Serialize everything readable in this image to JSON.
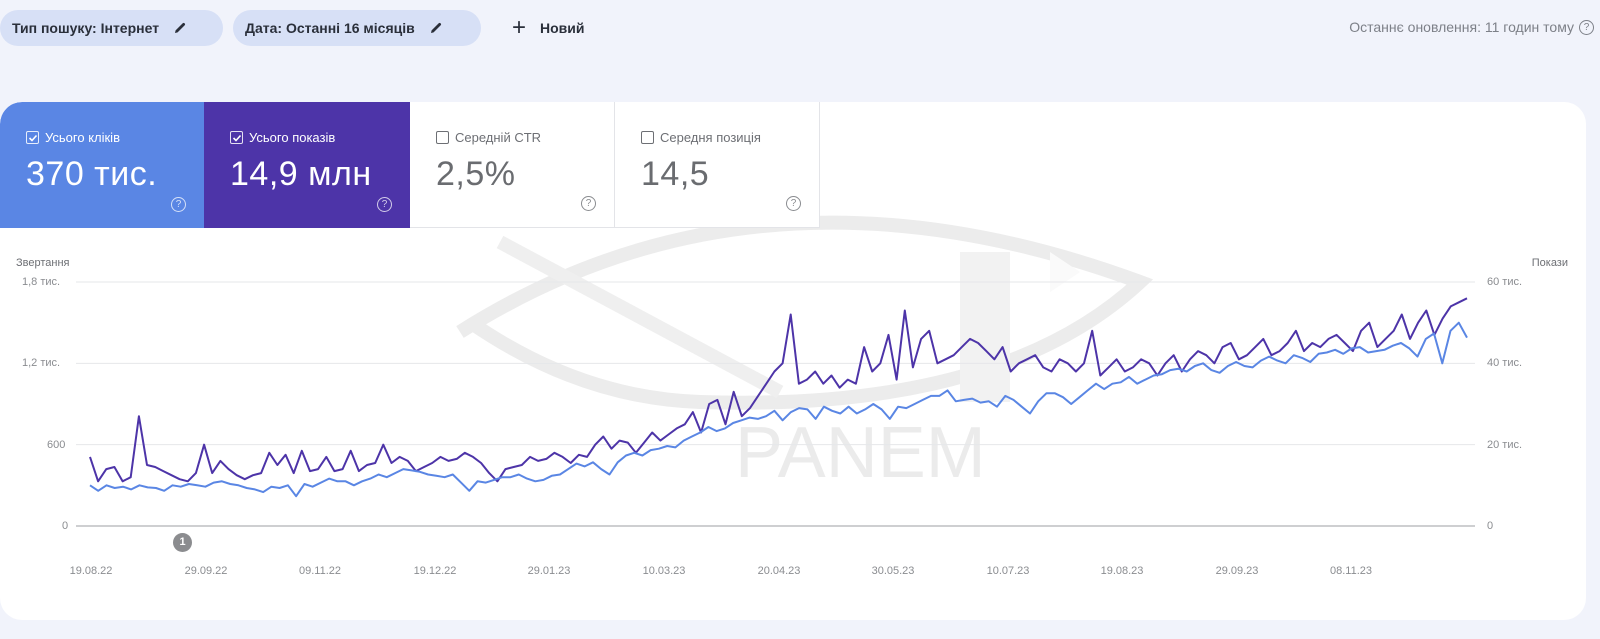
{
  "filters": {
    "search_type": "Тип пошуку: Інтернет",
    "date": "Дата: Останні 16 місяців",
    "new_label": "Новий"
  },
  "last_update": "Останнє оновлення: 11 годин тому",
  "metrics": [
    {
      "key": "clicks",
      "label": "Усього кліків",
      "value": "370 тис.",
      "checked": true,
      "color": "#5a86e4"
    },
    {
      "key": "impressions",
      "label": "Усього показів",
      "value": "14,9 млн",
      "checked": true,
      "color": "#4d34a8"
    },
    {
      "key": "ctr",
      "label": "Середній CTR",
      "value": "2,5%",
      "checked": false
    },
    {
      "key": "position",
      "label": "Середня позиція",
      "value": "14,5",
      "checked": false
    }
  ],
  "watermark": "PANEM",
  "annotation": {
    "label": "1",
    "date": "29.09.22"
  },
  "chart_data": {
    "type": "line",
    "title": "",
    "xlabel": "",
    "ylabel_left": "Звертання",
    "ylabel_right": "Покази",
    "left_ticks": [
      "0",
      "600",
      "1,2 тис.",
      "1,8 тис."
    ],
    "right_ticks": [
      "0",
      "20 тис.",
      "40 тис.",
      "60 тис."
    ],
    "ylim_left": [
      0,
      1800
    ],
    "ylim_right": [
      0,
      60000
    ],
    "x_tick_labels": [
      "19.08.22",
      "29.09.22",
      "09.11.22",
      "19.12.22",
      "29.01.23",
      "10.03.23",
      "20.04.23",
      "30.05.23",
      "10.07.23",
      "19.08.23",
      "29.09.23",
      "08.11.23"
    ],
    "grid": true,
    "legend": "metric cards above chart",
    "x_step_days": 3,
    "series": [
      {
        "name": "Усього кліків",
        "axis": "left",
        "color": "#5a86e4",
        "values": [
          300,
          260,
          300,
          280,
          290,
          270,
          300,
          285,
          280,
          260,
          300,
          290,
          310,
          300,
          290,
          320,
          330,
          310,
          300,
          280,
          270,
          250,
          290,
          280,
          300,
          220,
          310,
          290,
          320,
          350,
          330,
          330,
          300,
          330,
          350,
          380,
          360,
          390,
          420,
          410,
          400,
          380,
          370,
          360,
          380,
          320,
          260,
          330,
          320,
          340,
          360,
          360,
          380,
          350,
          330,
          340,
          370,
          380,
          420,
          460,
          440,
          470,
          420,
          380,
          470,
          520,
          540,
          520,
          560,
          570,
          590,
          580,
          630,
          660,
          690,
          730,
          700,
          720,
          760,
          780,
          800,
          790,
          810,
          850,
          780,
          840,
          870,
          860,
          790,
          880,
          850,
          830,
          880,
          830,
          860,
          900,
          860,
          790,
          880,
          870,
          900,
          930,
          960,
          960,
          1000,
          920,
          930,
          940,
          910,
          920,
          880,
          960,
          930,
          880,
          830,
          920,
          980,
          980,
          950,
          900,
          950,
          1000,
          1050,
          1010,
          1050,
          1060,
          1100,
          1050,
          1080,
          1110,
          1120,
          1150,
          1160,
          1140,
          1180,
          1200,
          1150,
          1130,
          1180,
          1210,
          1180,
          1170,
          1220,
          1250,
          1220,
          1200,
          1260,
          1240,
          1210,
          1270,
          1280,
          1300,
          1270,
          1310,
          1320,
          1280,
          1290,
          1300,
          1330,
          1350,
          1310,
          1250,
          1380,
          1420,
          1200,
          1440,
          1500,
          1390
        ]
      },
      {
        "name": "Усього показів",
        "axis": "right",
        "color": "#4d34a8",
        "values": [
          17000,
          11000,
          14000,
          14500,
          11000,
          12000,
          27000,
          15000,
          14500,
          13500,
          12500,
          11500,
          11000,
          13000,
          20000,
          13000,
          16000,
          14000,
          12500,
          11500,
          12500,
          13000,
          18000,
          15000,
          17500,
          13000,
          18500,
          13500,
          14000,
          17000,
          13500,
          14000,
          18500,
          13500,
          15000,
          15500,
          20000,
          15500,
          17000,
          16000,
          13500,
          14500,
          15500,
          17000,
          16000,
          16500,
          18000,
          17000,
          15500,
          13000,
          11000,
          14000,
          14500,
          15000,
          17000,
          16000,
          16500,
          18000,
          17000,
          15500,
          17500,
          17000,
          20000,
          22000,
          19000,
          21000,
          20500,
          18000,
          20500,
          23000,
          21000,
          22500,
          24000,
          25000,
          28000,
          23000,
          30000,
          31000,
          25000,
          33000,
          27000,
          29000,
          32000,
          35000,
          38000,
          40000,
          52000,
          35000,
          36000,
          38000,
          35000,
          37000,
          34000,
          36000,
          35000,
          44000,
          38000,
          40000,
          47000,
          36000,
          53000,
          39000,
          46000,
          48000,
          40000,
          41000,
          42000,
          44000,
          46000,
          45000,
          43000,
          41000,
          44000,
          38000,
          40000,
          41000,
          42000,
          39000,
          38000,
          41000,
          40000,
          38000,
          40000,
          48000,
          37000,
          39000,
          41000,
          38000,
          39000,
          41000,
          40000,
          37000,
          40000,
          42000,
          38000,
          41000,
          43000,
          42000,
          40000,
          44000,
          45000,
          41000,
          42000,
          44000,
          46000,
          42000,
          43000,
          45000,
          48000,
          43000,
          45000,
          44000,
          46000,
          47000,
          45000,
          43000,
          48000,
          50000,
          44000,
          46000,
          48000,
          52000,
          46000,
          50000,
          53000,
          47000,
          51000,
          54000,
          55000,
          56000
        ]
      }
    ]
  }
}
